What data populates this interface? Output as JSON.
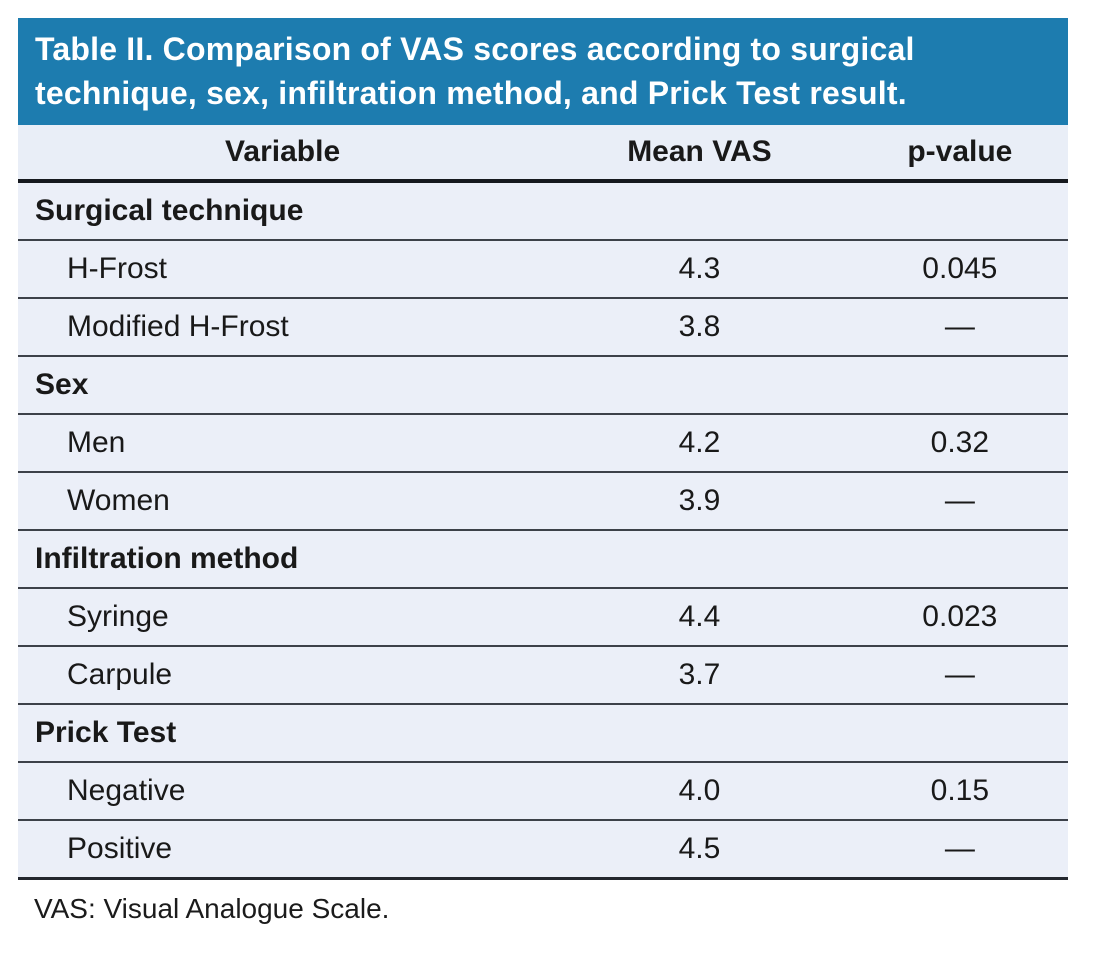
{
  "colors": {
    "title_bg": "#1d7caf",
    "title_text": "#ffffff",
    "header_row_bg": "#e9eef7",
    "row_bg": "#ebeff8",
    "row_border": "#3c4149",
    "strong_border": "#16191e",
    "text": "#191919"
  },
  "table": {
    "caption_lines": [
      "Table II. Comparison of VAS scores according to surgical",
      "technique, sex, infiltration method, and Prick Test result."
    ],
    "columns": [
      "Variable",
      "Mean VAS",
      "p-value"
    ],
    "sections": [
      {
        "header": "Surgical technique",
        "rows": [
          {
            "label": "H-Frost",
            "mean_vas": "4.3",
            "p_value": "0.045"
          },
          {
            "label": "Modified H-Frost",
            "mean_vas": "3.8",
            "p_value": "—"
          }
        ]
      },
      {
        "header": "Sex",
        "rows": [
          {
            "label": "Men",
            "mean_vas": "4.2",
            "p_value": "0.32"
          },
          {
            "label": "Women",
            "mean_vas": "3.9",
            "p_value": "—"
          }
        ]
      },
      {
        "header": "Infiltration method",
        "rows": [
          {
            "label": "Syringe",
            "mean_vas": "4.4",
            "p_value": "0.023"
          },
          {
            "label": "Carpule",
            "mean_vas": "3.7",
            "p_value": "—"
          }
        ]
      },
      {
        "header": "Prick Test",
        "rows": [
          {
            "label": "Negative",
            "mean_vas": "4.0",
            "p_value": "0.15"
          },
          {
            "label": "Positive",
            "mean_vas": "4.5",
            "p_value": "—"
          }
        ]
      }
    ],
    "footnote": "VAS: Visual Analogue Scale."
  }
}
